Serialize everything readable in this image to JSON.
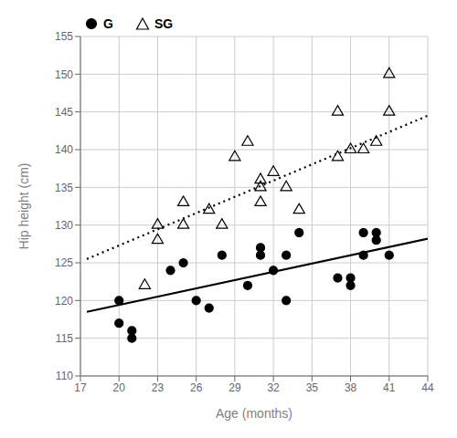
{
  "chart_data": {
    "type": "scatter",
    "xlabel": "Age (months)",
    "ylabel": "Hip height (cm)",
    "xlim": [
      17,
      44
    ],
    "ylim": [
      110,
      155
    ],
    "xticks": [
      17,
      20,
      23,
      26,
      29,
      32,
      35,
      38,
      41,
      44
    ],
    "yticks": [
      110,
      115,
      120,
      125,
      130,
      135,
      140,
      145,
      150,
      155
    ],
    "grid": true,
    "legend": "top-left",
    "series": [
      {
        "name": "G",
        "type": "scatter",
        "marker": "circle",
        "color": "#000000",
        "x": [
          20,
          20,
          21,
          21,
          24,
          25,
          26,
          27,
          28,
          30,
          31,
          31,
          32,
          33,
          33,
          34,
          37,
          38,
          38,
          39,
          39,
          40,
          40,
          41
        ],
        "values": [
          117,
          120,
          115,
          116,
          124,
          125,
          120,
          119,
          126,
          122,
          126,
          127,
          124,
          126,
          120,
          129,
          123,
          123,
          122,
          126,
          129,
          129,
          128,
          126
        ]
      },
      {
        "name": "SG",
        "type": "scatter",
        "marker": "open_triangle",
        "color": "#000000",
        "x": [
          22,
          23,
          23,
          25,
          25,
          27,
          28,
          29,
          30,
          31,
          31,
          31,
          32,
          33,
          34,
          37,
          37,
          38,
          39,
          40,
          41,
          41
        ],
        "values": [
          122,
          128,
          130,
          130,
          133,
          132,
          130,
          139,
          141,
          133,
          135,
          136,
          137,
          135,
          132,
          145,
          139,
          140,
          140,
          141,
          150,
          145
        ]
      },
      {
        "type": "line",
        "line_style": "solid",
        "color": "#000000",
        "x": [
          17.5,
          44.0
        ],
        "values": [
          118.5,
          128.2
        ]
      },
      {
        "type": "line",
        "line_style": "dotted",
        "color": "#000000",
        "x": [
          17.5,
          44.0
        ],
        "values": [
          125.5,
          144.5
        ]
      }
    ]
  }
}
